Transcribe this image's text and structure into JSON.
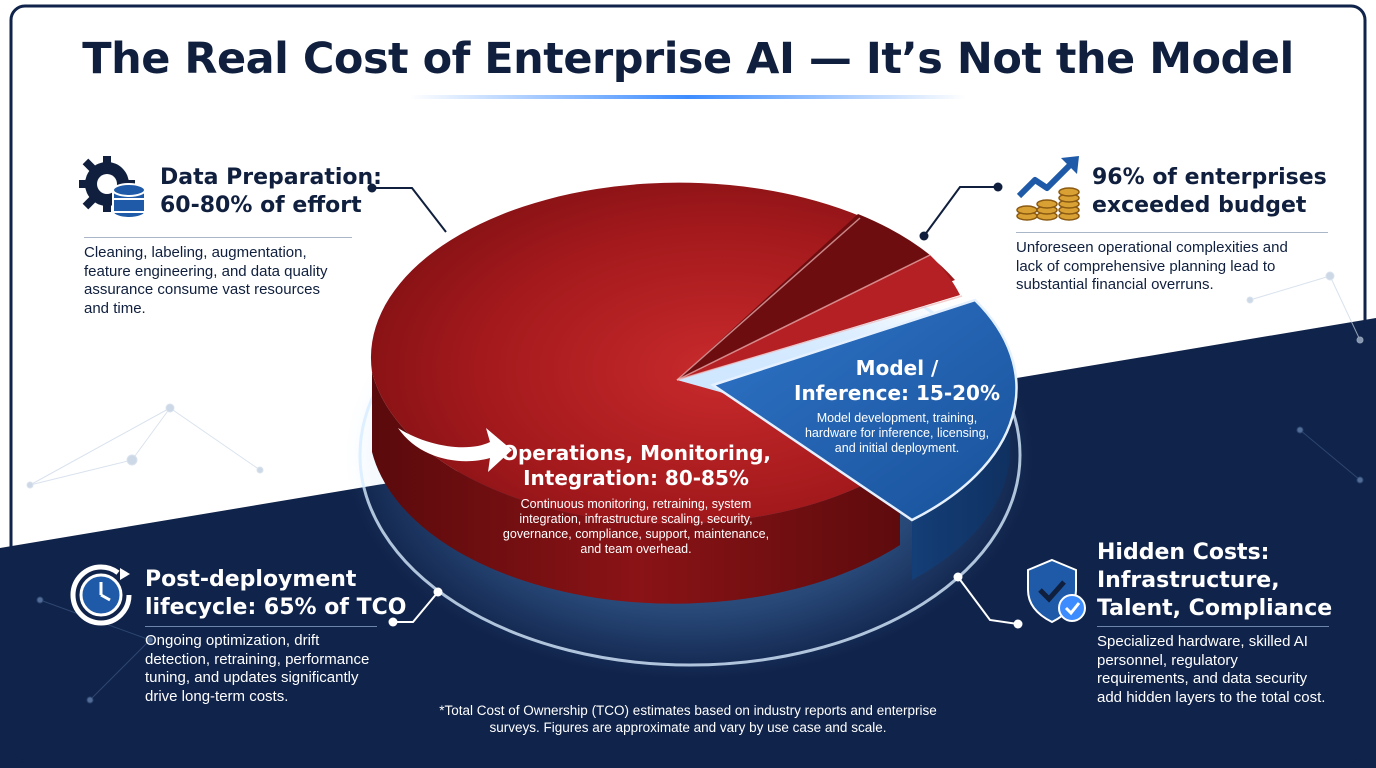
{
  "title": "The Real Cost of Enterprise AI — It’s Not the Model",
  "chart_data": {
    "type": "pie",
    "title": "The Real Cost of Enterprise AI — It’s Not the Model",
    "slices": [
      {
        "label_lines": [
          "Operations, Monitoring,",
          "Integration: 80-85%"
        ],
        "range_pct": [
          80,
          85
        ],
        "value": 82.5,
        "color": "#a8191d",
        "desc_lines": [
          "Continuous monitoring, retraining, system",
          "integration, infrastructure scaling, security,",
          "governance, compliance, support, maintenance,",
          "and team overhead."
        ]
      },
      {
        "label_lines": [
          "Model /",
          "Inference: 15-20%"
        ],
        "range_pct": [
          15,
          20
        ],
        "value": 17.5,
        "color": "#1e5aa8",
        "desc_lines": [
          "Model development, training,",
          "hardware for inference, licensing,",
          "and initial deployment."
        ]
      }
    ]
  },
  "callouts": {
    "data_prep": {
      "icon": "gear-database-icon",
      "heading_lines": [
        "Data Preparation:",
        "60-80% of effort"
      ],
      "text_lines": [
        "Cleaning, labeling, augmentation,",
        "feature engineering, and data quality",
        "assurance consume vast resources",
        "and time."
      ]
    },
    "budget": {
      "icon": "chart-coins-icon",
      "heading_lines": [
        "96% of enterprises",
        "exceeded budget"
      ],
      "text_lines": [
        "Unforeseen operational complexities and",
        "lack of comprehensive planning lead to",
        "substantial financial overruns."
      ]
    },
    "post_deploy": {
      "icon": "clock-cycle-icon",
      "heading_lines": [
        "Post-deployment",
        "lifecycle: 65% of TCO"
      ],
      "text_lines": [
        "Ongoing optimization, drift",
        "detection, retraining, performance",
        "tuning, and updates significantly",
        "drive long-term costs."
      ]
    },
    "hidden": {
      "icon": "shield-check-icon",
      "heading_lines": [
        "Hidden Costs:",
        "Infrastructure,",
        "Talent, Compliance"
      ],
      "text_lines": [
        "Specialized hardware, skilled AI",
        "personnel, regulatory",
        "requirements, and data security",
        "add hidden layers to the total cost."
      ]
    }
  },
  "footnote_lines": [
    "*Total Cost of Ownership (TCO) estimates based on industry reports and enterprise",
    "surveys. Figures are approximate and vary by use case and scale."
  ],
  "colors": {
    "navy": "#0f1f3d",
    "dark_band": "#10234a",
    "red": "#a8191d",
    "blue": "#1e5aa8",
    "gold": "#d9a033"
  }
}
